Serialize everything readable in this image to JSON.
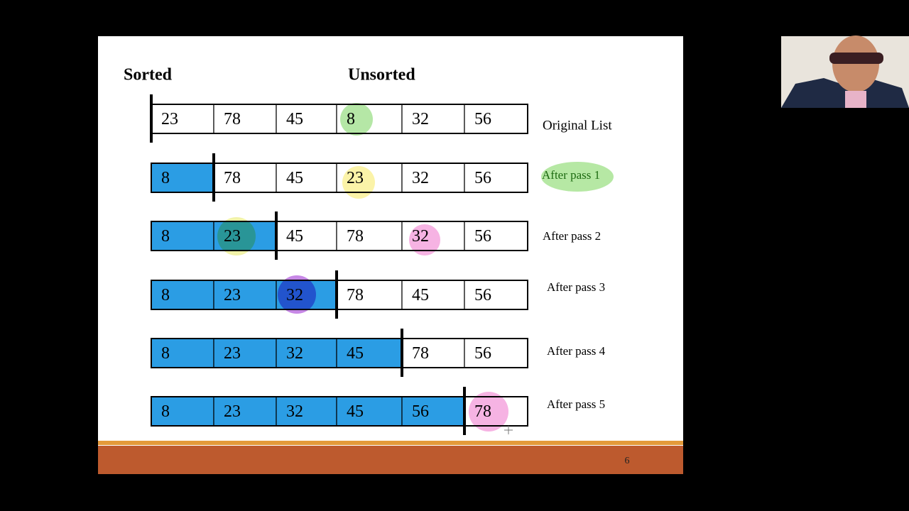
{
  "header": {
    "sorted": "Sorted",
    "unsorted": "Unsorted"
  },
  "rows": [
    {
      "cells": [
        23,
        78,
        45,
        8,
        32,
        56
      ],
      "label": "Original List"
    },
    {
      "cells": [
        8,
        78,
        45,
        23,
        32,
        56
      ],
      "label": "After pass 1"
    },
    {
      "cells": [
        8,
        23,
        45,
        78,
        32,
        56
      ],
      "label": "After pass 2"
    },
    {
      "cells": [
        8,
        23,
        32,
        78,
        45,
        56
      ],
      "label": "After pass 3"
    },
    {
      "cells": [
        8,
        23,
        32,
        45,
        78,
        56
      ],
      "label": "After pass 4"
    },
    {
      "cells": [
        8,
        23,
        32,
        45,
        56,
        78
      ],
      "label": "After pass 5"
    }
  ],
  "page_number": 6
}
